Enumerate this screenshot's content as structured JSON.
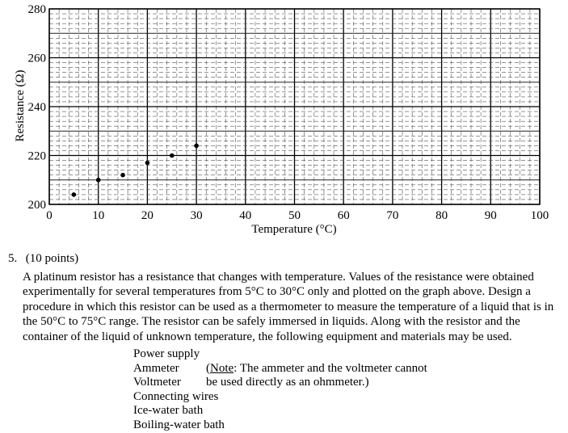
{
  "chart_data": {
    "type": "scatter",
    "title": "",
    "xlabel": "Temperature (°C)",
    "ylabel": "Resistance (Ω)",
    "xlim": [
      0,
      100
    ],
    "ylim": [
      200,
      280
    ],
    "x_ticks": [
      "0",
      "10",
      "20",
      "30",
      "40",
      "50",
      "60",
      "70",
      "80",
      "90",
      "100"
    ],
    "y_ticks": [
      "200",
      "220",
      "240",
      "260",
      "280"
    ],
    "grid": true,
    "legend": "none",
    "x": [
      5,
      10,
      15,
      20,
      25,
      30
    ],
    "y": [
      204,
      210,
      212,
      217,
      220,
      224
    ]
  },
  "question": {
    "number": "5.",
    "points": "(10 points)",
    "paragraph": "A platinum resistor has a resistance that changes with temperature. Values of the resistance were obtained experimentally for several temperatures from 5°C to 30°C only and plotted on the graph above. Design a procedure in which this resistor can be used as a thermometer to measure the temperature of a liquid that is in the 50°C to 75°C range. The resistor can be safely immersed in liquids. Along with the resistor and the container of the liquid of unknown temperature, the following equipment and materials may be used."
  },
  "equipment": {
    "power_supply": "Power supply",
    "ammeter": "Ammeter",
    "voltmeter": "Voltmeter",
    "wires": "Connecting wires",
    "ice_bath": "Ice-water bath",
    "boiling_bath": "Boiling-water bath",
    "note_open": "(",
    "note_word": "Note",
    "note_rest": ":  The ammeter and the voltmeter cannot",
    "note_line2": "be used directly as an ohmmeter.)"
  }
}
